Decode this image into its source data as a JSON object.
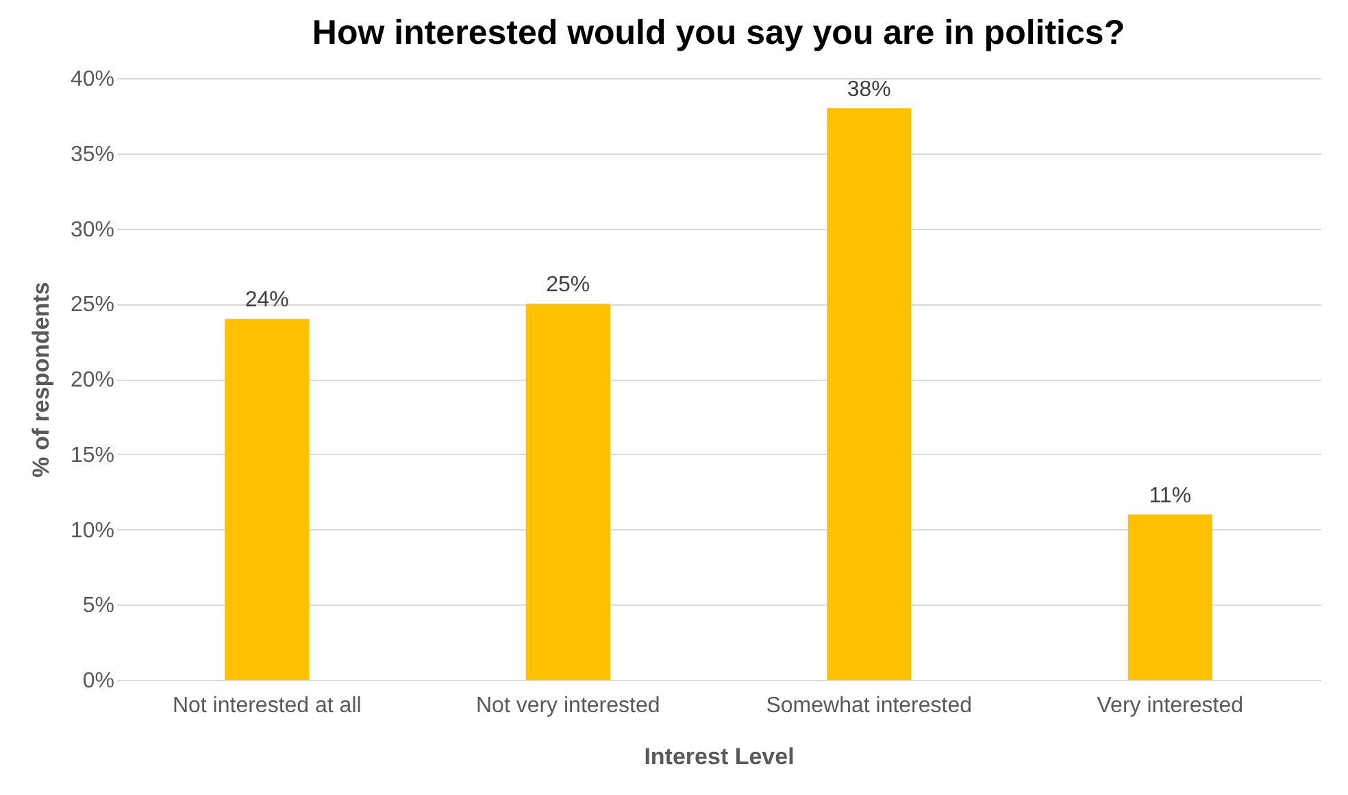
{
  "chart_data": {
    "type": "bar",
    "title": "How interested would you say you are in politics?",
    "xlabel": "Interest Level",
    "ylabel": "% of respondents",
    "categories": [
      "Not interested at all",
      "Not very interested",
      "Somewhat interested",
      "Very interested"
    ],
    "values": [
      24,
      25,
      38,
      11
    ],
    "value_labels": [
      "24%",
      "25%",
      "38%",
      "11%"
    ],
    "color": "#ffc000",
    "ylim": [
      0,
      40
    ],
    "yticks": [
      {
        "value": 0,
        "label": "0%"
      },
      {
        "value": 5,
        "label": "5%"
      },
      {
        "value": 10,
        "label": "10%"
      },
      {
        "value": 15,
        "label": "15%"
      },
      {
        "value": 20,
        "label": "20%"
      },
      {
        "value": 25,
        "label": "25%"
      },
      {
        "value": 30,
        "label": "30%"
      },
      {
        "value": 35,
        "label": "35%"
      },
      {
        "value": 40,
        "label": "40%"
      }
    ],
    "grid": "y"
  }
}
